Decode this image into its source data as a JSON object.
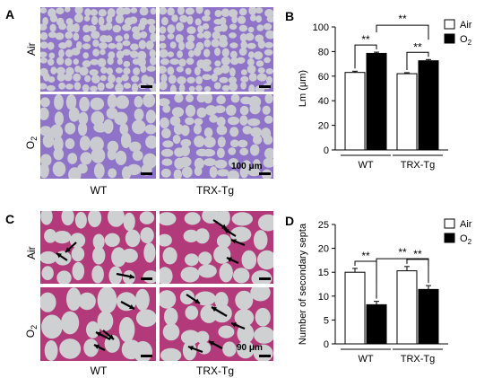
{
  "figure": {
    "panel_a": {
      "letter": "A",
      "row_labels": [
        "Air",
        "O2"
      ],
      "col_labels": [
        "WT",
        "TRX-Tg"
      ],
      "scale_label": "100 μm"
    },
    "panel_c": {
      "letter": "C",
      "row_labels": [
        "Air",
        "O2"
      ],
      "col_labels": [
        "WT",
        "TRX-Tg"
      ],
      "scale_label": "90 μm"
    },
    "colors": {
      "he_stain_a": "#8f73c8",
      "he_stain_c": "#b23a7a",
      "background_a": "#c9cbd0",
      "background_c": "#cfd0d2",
      "bar_air": "#ffffff",
      "bar_o2": "#000000"
    }
  },
  "chart_data": [
    {
      "panel": "B",
      "type": "bar",
      "categories": [
        "WT",
        "TRX-Tg"
      ],
      "series": [
        {
          "name": "Air",
          "values": [
            63,
            62
          ],
          "errors": [
            1,
            0.8
          ]
        },
        {
          "name": "O2",
          "values": [
            78.5,
            72.5
          ],
          "errors": [
            1,
            1
          ]
        }
      ],
      "ylabel": "Lm (μm)",
      "ylim": [
        0,
        100
      ],
      "yticks": [
        0,
        20,
        40,
        60,
        80,
        100
      ],
      "legend": "top-right",
      "significance_label": "**"
    },
    {
      "panel": "D",
      "type": "bar",
      "categories": [
        "WT",
        "TRX-Tg"
      ],
      "series": [
        {
          "name": "Air",
          "values": [
            15,
            15.3
          ],
          "errors": [
            0.8,
            0.9
          ]
        },
        {
          "name": "O2",
          "values": [
            8.2,
            11.4
          ],
          "errors": [
            0.7,
            0.8
          ]
        }
      ],
      "ylabel": "Number of secondary septa",
      "ylim": [
        0,
        25
      ],
      "yticks": [
        0,
        5,
        10,
        15,
        20,
        25
      ],
      "legend": "top-right",
      "significance_label": "**"
    }
  ]
}
